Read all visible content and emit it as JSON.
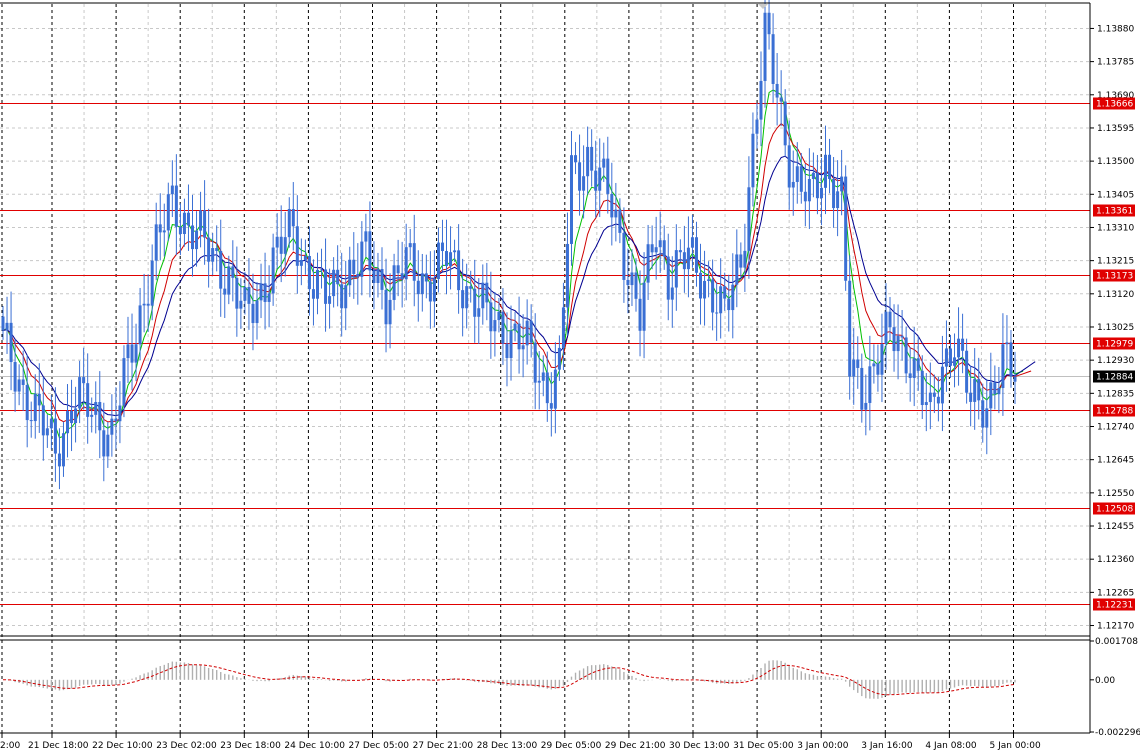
{
  "chart_data": [
    {
      "type": "candlestick",
      "panel": "price",
      "ylim": [
        1.1214,
        1.1395
      ],
      "y_ticks": [
        "1.13880",
        "1.13785",
        "1.13690",
        "1.13595",
        "1.13500",
        "1.13405",
        "1.13310",
        "1.13215",
        "1.13120",
        "1.13025",
        "1.12930",
        "1.12835",
        "1.12740",
        "1.12645",
        "1.12550",
        "1.12455",
        "1.12360",
        "1.12265",
        "1.12170"
      ],
      "x_ticks": [
        "2:00",
        "21 Dec 18:00",
        "22 Dec 10:00",
        "23 Dec 02:00",
        "23 Dec 18:00",
        "24 Dec 10:00",
        "27 Dec 05:00",
        "27 Dec 21:00",
        "28 Dec 13:00",
        "29 Dec 05:00",
        "29 Dec 21:00",
        "30 Dec 13:00",
        "31 Dec 05:00",
        "3 Jan 00:00",
        "3 Jan 16:00",
        "4 Jan 08:00",
        "5 Jan 00:00"
      ],
      "current_price": "1.12884",
      "levels": [
        {
          "value": "1.13666",
          "color": "#e00000"
        },
        {
          "value": "1.13361",
          "color": "#e00000"
        },
        {
          "value": "1.13173",
          "color": "#e00000"
        },
        {
          "value": "1.12979",
          "color": "#e00000"
        },
        {
          "value": "1.12788",
          "color": "#e00000"
        },
        {
          "value": "1.12508",
          "color": "#e00000"
        },
        {
          "value": "1.12231",
          "color": "#e00000"
        }
      ],
      "close_anchors": [
        [
          0,
          1.1298
        ],
        [
          5,
          1.1285
        ],
        [
          9,
          1.1275
        ],
        [
          13,
          1.1268
        ],
        [
          18,
          1.1282
        ],
        [
          22,
          1.1278
        ],
        [
          27,
          1.1272
        ],
        [
          32,
          1.1296
        ],
        [
          37,
          1.1322
        ],
        [
          42,
          1.1338
        ],
        [
          47,
          1.1331
        ],
        [
          52,
          1.1322
        ],
        [
          56,
          1.1318
        ],
        [
          60,
          1.1305
        ],
        [
          63,
          1.131
        ],
        [
          67,
          1.1322
        ],
        [
          72,
          1.133
        ],
        [
          76,
          1.1318
        ],
        [
          80,
          1.131
        ],
        [
          85,
          1.1318
        ],
        [
          90,
          1.1322
        ],
        [
          95,
          1.1312
        ],
        [
          100,
          1.132
        ],
        [
          105,
          1.1316
        ],
        [
          110,
          1.1322
        ],
        [
          115,
          1.1314
        ],
        [
          120,
          1.1305
        ],
        [
          125,
          1.1302
        ],
        [
          130,
          1.1296
        ],
        [
          135,
          1.1285
        ],
        [
          138,
          1.129
        ],
        [
          141,
          1.1345
        ],
        [
          145,
          1.1352
        ],
        [
          150,
          1.134
        ],
        [
          155,
          1.132
        ],
        [
          158,
          1.1305
        ],
        [
          162,
          1.133
        ],
        [
          165,
          1.1318
        ],
        [
          170,
          1.1322
        ],
        [
          175,
          1.1315
        ],
        [
          179,
          1.1305
        ],
        [
          183,
          1.1322
        ],
        [
          186,
          1.1355
        ],
        [
          189,
          1.1385
        ],
        [
          192,
          1.137
        ],
        [
          196,
          1.1345
        ],
        [
          200,
          1.1338
        ],
        [
          204,
          1.135
        ],
        [
          208,
          1.1338
        ],
        [
          210,
          1.129
        ],
        [
          213,
          1.1285
        ],
        [
          216,
          1.1292
        ],
        [
          220,
          1.13
        ],
        [
          225,
          1.1295
        ],
        [
          230,
          1.1275
        ],
        [
          233,
          1.1292
        ],
        [
          236,
          1.13
        ],
        [
          240,
          1.128
        ],
        [
          244,
          1.1282
        ],
        [
          248,
          1.1292
        ],
        [
          251,
          1.1288
        ]
      ],
      "ma_fast_color": "#00c000",
      "ma_mid_color": "#d00000",
      "ma_slow_color": "#000090",
      "candle_color": "#3a6fd4"
    },
    {
      "type": "bar",
      "panel": "oscillator",
      "ylim": [
        -0.002296,
        0.001708
      ],
      "y_ticks": [
        "0.001708",
        "0.00",
        "-0.002296"
      ],
      "signal_color": "#d00000",
      "bar_color": "#b0b0b0"
    }
  ]
}
